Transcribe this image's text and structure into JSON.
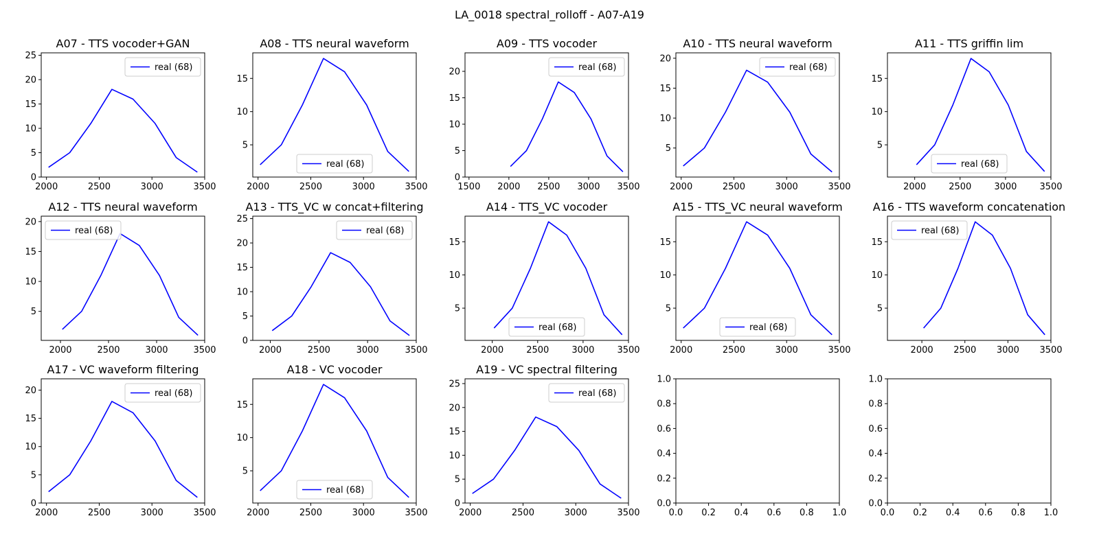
{
  "figure": {
    "suptitle": "LA_0018 spectral_rolloff - A07-A19"
  },
  "colors": {
    "line": "#0000ff",
    "axes": "#000000",
    "legend_border": "#cccccc"
  },
  "chart_data": [
    {
      "type": "line",
      "title": "A07 - TTS vocoder+GAN",
      "series": [
        {
          "name": "real (68)",
          "x": [
            2020,
            2220,
            2420,
            2620,
            2820,
            3030,
            3230,
            3430
          ],
          "y": [
            2,
            5,
            11,
            18,
            16,
            11,
            4,
            1
          ]
        }
      ],
      "xlim": [
        1950,
        3500
      ],
      "ylim": [
        0,
        25.5
      ],
      "xticks": [
        2000,
        2500,
        3000,
        3500
      ],
      "yticks": [
        0,
        5,
        10,
        15,
        20,
        25
      ],
      "legend": "upper right"
    },
    {
      "type": "line",
      "title": "A08 - TTS neural waveform",
      "series": [
        {
          "name": "real (68)",
          "x": [
            2020,
            2220,
            2420,
            2620,
            2820,
            3030,
            3230,
            3430
          ],
          "y": [
            2,
            5,
            11,
            18,
            16,
            11,
            4,
            1
          ]
        }
      ],
      "xlim": [
        1950,
        3500
      ],
      "ylim": [
        0.15,
        18.85
      ],
      "xticks": [
        2000,
        2500,
        3000,
        3500
      ],
      "yticks": [
        5,
        10,
        15
      ],
      "legend": "lower center"
    },
    {
      "type": "line",
      "title": "A09 - TTS vocoder",
      "series": [
        {
          "name": "real (68)",
          "x": [
            2020,
            2220,
            2420,
            2620,
            2820,
            3030,
            3230,
            3430
          ],
          "y": [
            2,
            5,
            11,
            18,
            16,
            11,
            4,
            1
          ]
        }
      ],
      "xlim": [
        1450,
        3500
      ],
      "ylim": [
        0,
        23.5
      ],
      "xticks": [
        1500,
        2000,
        2500,
        3000,
        3500
      ],
      "yticks": [
        0,
        5,
        10,
        15,
        20
      ],
      "legend": "upper right"
    },
    {
      "type": "line",
      "title": "A10 - TTS neural waveform",
      "series": [
        {
          "name": "real (68)",
          "x": [
            2020,
            2220,
            2420,
            2620,
            2820,
            3030,
            3230,
            3430
          ],
          "y": [
            2,
            5,
            11,
            18,
            16,
            11,
            4,
            1
          ]
        }
      ],
      "xlim": [
        1950,
        3500
      ],
      "ylim": [
        0.15,
        20.9
      ],
      "xticks": [
        2000,
        2500,
        3000,
        3500
      ],
      "yticks": [
        5,
        10,
        15,
        20
      ],
      "legend": "upper right"
    },
    {
      "type": "line",
      "title": "A11 - TTS griffin lim",
      "series": [
        {
          "name": "real (68)",
          "x": [
            2020,
            2220,
            2420,
            2620,
            2820,
            3030,
            3230,
            3430
          ],
          "y": [
            2,
            5,
            11,
            18,
            16,
            11,
            4,
            1
          ]
        }
      ],
      "xlim": [
        1700,
        3500
      ],
      "ylim": [
        0.15,
        18.85
      ],
      "xticks": [
        2000,
        2500,
        3000,
        3500
      ],
      "yticks": [
        5,
        10,
        15
      ],
      "legend": "lower center"
    },
    {
      "type": "line",
      "title": "A12 - TTS neural waveform",
      "series": [
        {
          "name": "real (68)",
          "x": [
            2020,
            2220,
            2420,
            2620,
            2820,
            3030,
            3230,
            3430
          ],
          "y": [
            2,
            5,
            11,
            18,
            16,
            11,
            4,
            1
          ]
        }
      ],
      "xlim": [
        1800,
        3500
      ],
      "ylim": [
        0.15,
        20.9
      ],
      "xticks": [
        2000,
        2500,
        3000,
        3500
      ],
      "yticks": [
        5,
        10,
        15,
        20
      ],
      "legend": "upper left"
    },
    {
      "type": "line",
      "title": "A13 - TTS_VC w concat+filtering",
      "series": [
        {
          "name": "real (68)",
          "x": [
            2020,
            2220,
            2420,
            2620,
            2820,
            3030,
            3230,
            3430
          ],
          "y": [
            2,
            5,
            11,
            18,
            16,
            11,
            4,
            1
          ]
        }
      ],
      "xlim": [
        1820,
        3500
      ],
      "ylim": [
        0,
        25.5
      ],
      "xticks": [
        2000,
        2500,
        3000,
        3500
      ],
      "yticks": [
        0,
        5,
        10,
        15,
        20,
        25
      ],
      "legend": "upper right"
    },
    {
      "type": "line",
      "title": "A14 - TTS_VC vocoder",
      "series": [
        {
          "name": "real (68)",
          "x": [
            2020,
            2220,
            2420,
            2620,
            2820,
            3030,
            3230,
            3430
          ],
          "y": [
            2,
            5,
            11,
            18,
            16,
            11,
            4,
            1
          ]
        }
      ],
      "xlim": [
        1700,
        3500
      ],
      "ylim": [
        0.15,
        18.85
      ],
      "xticks": [
        2000,
        2500,
        3000,
        3500
      ],
      "yticks": [
        5,
        10,
        15
      ],
      "legend": "lower center"
    },
    {
      "type": "line",
      "title": "A15 - TTS_VC neural waveform",
      "series": [
        {
          "name": "real (68)",
          "x": [
            2020,
            2220,
            2420,
            2620,
            2820,
            3030,
            3230,
            3430
          ],
          "y": [
            2,
            5,
            11,
            18,
            16,
            11,
            4,
            1
          ]
        }
      ],
      "xlim": [
        1950,
        3500
      ],
      "ylim": [
        0.15,
        18.85
      ],
      "xticks": [
        2000,
        2500,
        3000,
        3500
      ],
      "yticks": [
        5,
        10,
        15
      ],
      "legend": "lower center"
    },
    {
      "type": "line",
      "title": "A16 - TTS waveform concatenation",
      "series": [
        {
          "name": "real (68)",
          "x": [
            2020,
            2220,
            2420,
            2620,
            2820,
            3030,
            3230,
            3430
          ],
          "y": [
            2,
            5,
            11,
            18,
            16,
            11,
            4,
            1
          ]
        }
      ],
      "xlim": [
        1600,
        3500
      ],
      "ylim": [
        0.15,
        18.85
      ],
      "xticks": [
        2000,
        2500,
        3000,
        3500
      ],
      "yticks": [
        5,
        10,
        15
      ],
      "legend": "upper left"
    },
    {
      "type": "line",
      "title": "A17 - VC waveform filtering",
      "series": [
        {
          "name": "real (68)",
          "x": [
            2020,
            2220,
            2420,
            2620,
            2820,
            3030,
            3230,
            3430
          ],
          "y": [
            2,
            5,
            11,
            18,
            16,
            11,
            4,
            1
          ]
        }
      ],
      "xlim": [
        1950,
        3500
      ],
      "ylim": [
        0,
        22
      ],
      "xticks": [
        2000,
        2500,
        3000,
        3500
      ],
      "yticks": [
        0,
        5,
        10,
        15,
        20
      ],
      "legend": "upper right"
    },
    {
      "type": "line",
      "title": "A18 - VC vocoder",
      "series": [
        {
          "name": "real (68)",
          "x": [
            2020,
            2220,
            2420,
            2620,
            2820,
            3030,
            3230,
            3430
          ],
          "y": [
            2,
            5,
            11,
            18,
            16,
            11,
            4,
            1
          ]
        }
      ],
      "xlim": [
        1950,
        3500
      ],
      "ylim": [
        0.15,
        18.85
      ],
      "xticks": [
        2000,
        2500,
        3000,
        3500
      ],
      "yticks": [
        5,
        10,
        15
      ],
      "legend": "lower center"
    },
    {
      "type": "line",
      "title": "A19 - VC spectral filtering",
      "series": [
        {
          "name": "real (68)",
          "x": [
            2020,
            2220,
            2420,
            2620,
            2820,
            3030,
            3230,
            3430
          ],
          "y": [
            2,
            5,
            11,
            18,
            16,
            11,
            4,
            1
          ]
        }
      ],
      "xlim": [
        1950,
        3500
      ],
      "ylim": [
        0,
        26
      ],
      "xticks": [
        2000,
        2500,
        3000,
        3500
      ],
      "yticks": [
        0,
        5,
        10,
        15,
        20,
        25
      ],
      "legend": "upper right"
    },
    {
      "type": "line",
      "title": "",
      "series": [],
      "xlim": [
        0,
        1
      ],
      "ylim": [
        0,
        1
      ],
      "xticks": [
        0.0,
        0.2,
        0.4,
        0.6,
        0.8,
        1.0
      ],
      "yticks": [
        0.0,
        0.2,
        0.4,
        0.6,
        0.8,
        1.0
      ],
      "tick_format": "1dp",
      "legend": "none"
    },
    {
      "type": "line",
      "title": "",
      "series": [],
      "xlim": [
        0,
        1
      ],
      "ylim": [
        0,
        1
      ],
      "xticks": [
        0.0,
        0.2,
        0.4,
        0.6,
        0.8,
        1.0
      ],
      "yticks": [
        0.0,
        0.2,
        0.4,
        0.6,
        0.8,
        1.0
      ],
      "tick_format": "1dp",
      "legend": "none"
    }
  ]
}
